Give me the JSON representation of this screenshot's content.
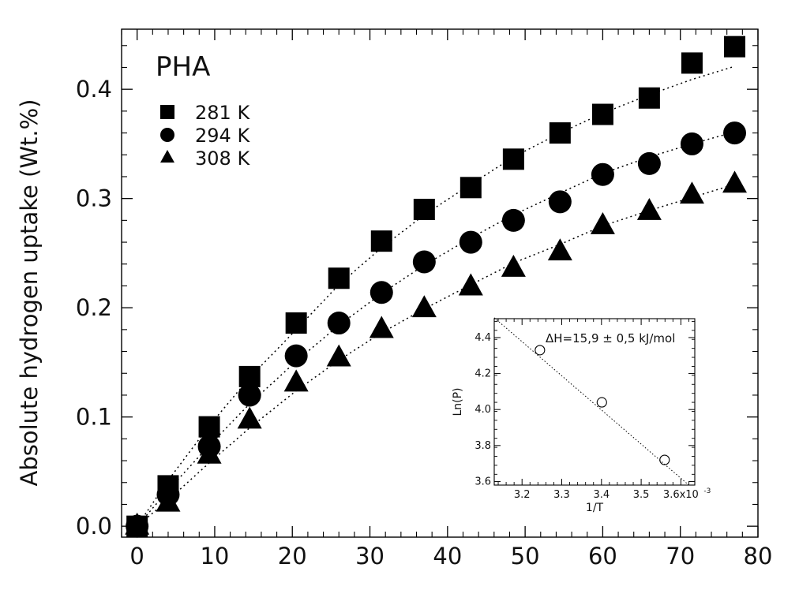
{
  "chart_data": [
    {
      "type": "scatter",
      "title": "PHA",
      "xlabel": "",
      "ylabel": "Absolute hydrogen uptake (Wt.%)",
      "xlim": [
        -2,
        80
      ],
      "ylim": [
        -0.01,
        0.455
      ],
      "x_ticks": [
        0,
        10,
        20,
        30,
        40,
        50,
        60,
        70,
        80
      ],
      "y_ticks": [
        0.0,
        0.1,
        0.2,
        0.3,
        0.4
      ],
      "x_tick_labels": [
        "0",
        "10",
        "20",
        "30",
        "40",
        "50",
        "60",
        "70",
        "80"
      ],
      "y_tick_labels": [
        "0.0",
        "0.1",
        "0.2",
        "0.3",
        "0.4"
      ],
      "grid": false,
      "legend_position": "top-left",
      "series": [
        {
          "name": "281 K",
          "marker": "square",
          "color": "#000000",
          "x": [
            0,
            4,
            9.3,
            14.5,
            20.5,
            26,
            31.5,
            37,
            43,
            48.5,
            54.5,
            60,
            66,
            71.5,
            77
          ],
          "y": [
            0.0,
            0.037,
            0.091,
            0.137,
            0.186,
            0.227,
            0.261,
            0.29,
            0.31,
            0.336,
            0.36,
            0.377,
            0.392,
            0.424,
            0.439
          ]
        },
        {
          "name": "294 K",
          "marker": "circle",
          "color": "#000000",
          "x": [
            0,
            4,
            9.3,
            14.5,
            20.5,
            26,
            31.5,
            37,
            43,
            48.5,
            54.5,
            60,
            66,
            71.5,
            77
          ],
          "y": [
            0.0,
            0.029,
            0.073,
            0.12,
            0.156,
            0.186,
            0.214,
            0.242,
            0.26,
            0.28,
            0.297,
            0.322,
            0.332,
            0.35,
            0.36
          ]
        },
        {
          "name": "308 K",
          "marker": "triangle",
          "color": "#000000",
          "x": [
            0,
            4,
            9.3,
            14.5,
            20.5,
            26,
            31.5,
            37,
            43,
            48.5,
            54.5,
            60,
            66,
            71.5,
            77
          ],
          "y": [
            0.0,
            0.021,
            0.065,
            0.097,
            0.131,
            0.154,
            0.18,
            0.199,
            0.219,
            0.236,
            0.251,
            0.275,
            0.288,
            0.303,
            0.313
          ]
        }
      ],
      "fit_lines": [
        {
          "series": "281 K",
          "x": [
            0,
            4,
            9.3,
            14.5,
            20.5,
            26,
            31.5,
            37,
            43,
            48.5,
            54.5,
            60,
            66,
            71.5,
            77
          ],
          "y": [
            0.0,
            0.042,
            0.092,
            0.136,
            0.18,
            0.221,
            0.255,
            0.285,
            0.313,
            0.338,
            0.36,
            0.378,
            0.395,
            0.409,
            0.421
          ]
        },
        {
          "series": "294 K",
          "x": [
            0,
            4,
            9.3,
            14.5,
            20.5,
            26,
            31.5,
            37,
            43,
            48.5,
            54.5,
            60,
            66,
            71.5,
            77
          ],
          "y": [
            0.0,
            0.033,
            0.074,
            0.112,
            0.151,
            0.184,
            0.213,
            0.239,
            0.264,
            0.285,
            0.305,
            0.323,
            0.338,
            0.35,
            0.361
          ]
        },
        {
          "series": "308 K",
          "x": [
            0,
            4,
            9.3,
            14.5,
            20.5,
            26,
            31.5,
            37,
            43,
            48.5,
            54.5,
            60,
            66,
            71.5,
            77
          ],
          "y": [
            0.0,
            0.024,
            0.058,
            0.09,
            0.124,
            0.152,
            0.177,
            0.199,
            0.221,
            0.241,
            0.258,
            0.275,
            0.289,
            0.301,
            0.313
          ]
        }
      ]
    },
    {
      "type": "scatter",
      "title": "",
      "annotation": "ΔH=15,9 ± 0,5 kJ/mol",
      "xlabel": "1/T",
      "ylabel": "Ln(P)",
      "xlim": [
        3.13,
        3.635
      ],
      "ylim": [
        3.58,
        4.505
      ],
      "x_ticks": [
        3.2,
        3.3,
        3.4,
        3.5,
        3.6
      ],
      "y_ticks": [
        3.6,
        3.8,
        4.0,
        4.2,
        4.4
      ],
      "x_tick_labels": [
        "3.2",
        "3.3",
        "3.4",
        "3.5",
        "3.6x10"
      ],
      "x_tick_label_exponent": "-3",
      "y_tick_labels": [
        "3.6",
        "3.8",
        "4.0",
        "4.2",
        "4.4"
      ],
      "grid": false,
      "series": [
        {
          "name": "",
          "marker": "open-circle",
          "color": "#000000",
          "x": [
            3.245,
            3.401,
            3.559
          ],
          "y": [
            4.33,
            4.04,
            3.72
          ]
        }
      ],
      "fit_line": {
        "x": [
          3.13,
          3.62
        ],
        "y": [
          4.51,
          3.58
        ]
      }
    }
  ]
}
